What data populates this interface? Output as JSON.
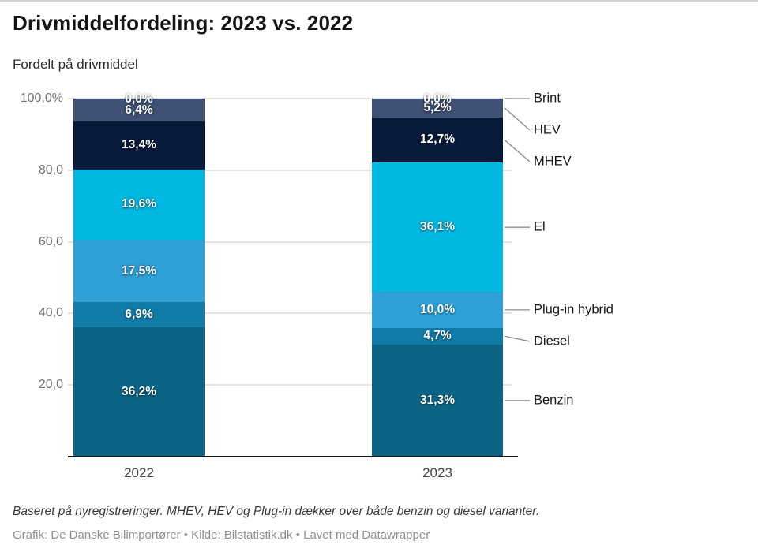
{
  "header": {
    "title": "Drivmiddelfordeling: 2023 vs. 2022",
    "subtitle": "Fordelt på drivmiddel"
  },
  "chart_data": {
    "type": "bar",
    "variant": "stacked-column",
    "unit": "percent",
    "categories": [
      "2022",
      "2023"
    ],
    "series": [
      {
        "name": "Benzin",
        "color": "#0c6485",
        "values": [
          36.2,
          31.3
        ],
        "value_labels": [
          "36,2%",
          "31,3%"
        ]
      },
      {
        "name": "Diesel",
        "color": "#117ba8",
        "values": [
          6.9,
          4.7
        ],
        "value_labels": [
          "6,9%",
          "4,7%"
        ]
      },
      {
        "name": "Plug-in hybrid",
        "color": "#2ea0d6",
        "values": [
          17.5,
          10.0
        ],
        "value_labels": [
          "17,5%",
          "10,0%"
        ]
      },
      {
        "name": "El",
        "color": "#00b8e2",
        "values": [
          19.6,
          36.1
        ],
        "value_labels": [
          "19,6%",
          "36,1%"
        ]
      },
      {
        "name": "MHEV",
        "color": "#071a3a",
        "values": [
          13.4,
          12.7
        ],
        "value_labels": [
          "13,4%",
          "12,7%"
        ]
      },
      {
        "name": "HEV",
        "color": "#3f5174",
        "values": [
          6.4,
          5.2
        ],
        "value_labels": [
          "6,4%",
          "5,2%"
        ]
      },
      {
        "name": "Brint",
        "color": null,
        "values": [
          0.0,
          0.0
        ],
        "value_labels": [
          "0,0%",
          "0,0%"
        ]
      }
    ],
    "y_axis": {
      "range": [
        0,
        100
      ],
      "grid": true,
      "ticks": [
        {
          "value": 100,
          "label": "100,0%"
        },
        {
          "value": 80,
          "label": "80,0"
        },
        {
          "value": 60,
          "label": "60,0"
        },
        {
          "value": 40,
          "label": "40,0"
        },
        {
          "value": 20,
          "label": "20,0"
        }
      ]
    },
    "legend_position": "right-connected",
    "legend_order_top_to_bottom": [
      "Brint",
      "HEV",
      "MHEV",
      "El",
      "Plug-in hybrid",
      "Diesel",
      "Benzin"
    ]
  },
  "footer": {
    "notes": "Baseret på nyregistreringer. MHEV, HEV og Plug-in dækker over både benzin og diesel varianter.",
    "byline": "Grafik: De Danske Bilimportører • Kilde: Bilstatistik.dk • Lavet med Datawrapper"
  }
}
